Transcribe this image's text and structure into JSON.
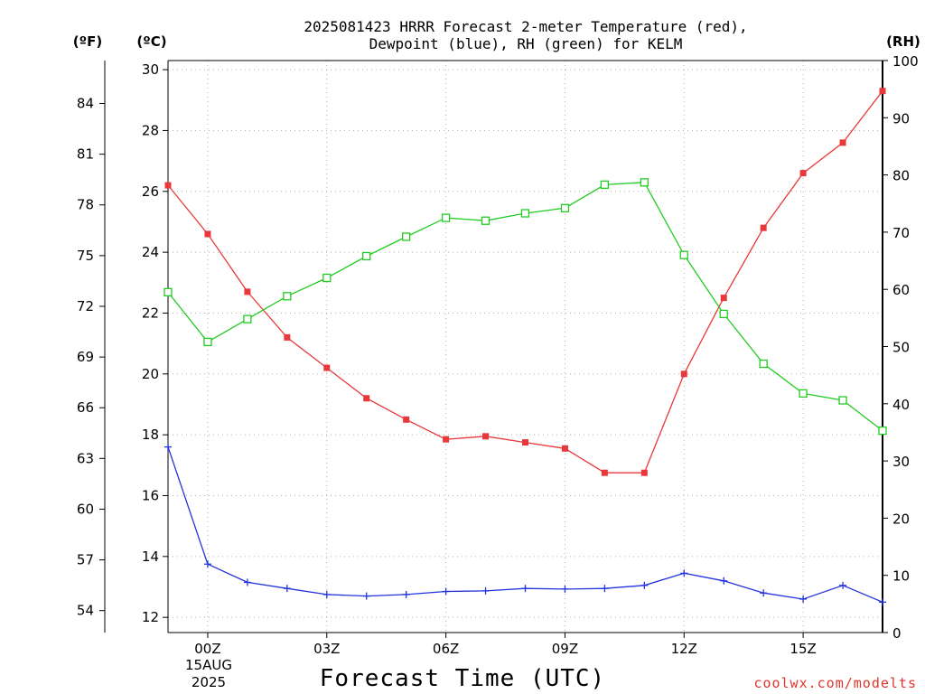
{
  "chart_data": {
    "type": "line",
    "title_lines": [
      "2025081423 HRRR Forecast 2-meter Temperature (red),",
      "Dewpoint (blue), RH (green) for KELM"
    ],
    "xlabel": "Forecast Time (UTC)",
    "x_hours": [
      -1,
      0,
      1,
      2,
      3,
      4,
      5,
      6,
      7,
      8,
      9,
      10,
      11,
      12,
      13,
      14,
      15,
      16,
      17
    ],
    "x_ticks": [
      {
        "h": 0,
        "label": "00Z"
      },
      {
        "h": 3,
        "label": "03Z"
      },
      {
        "h": 6,
        "label": "06Z"
      },
      {
        "h": 9,
        "label": "09Z"
      },
      {
        "h": 12,
        "label": "12Z"
      },
      {
        "h": 15,
        "label": "15Z"
      }
    ],
    "date_label": [
      "15AUG",
      "2025"
    ],
    "xlim": [
      -1,
      17
    ],
    "y_celsius": {
      "unit": "(ºC)",
      "lim": [
        11.5,
        30.3
      ],
      "ticks": [
        12,
        14,
        16,
        18,
        20,
        22,
        24,
        26,
        28,
        30
      ]
    },
    "y_fahrenheit": {
      "unit": "(ºF)",
      "ticks": [
        54,
        57,
        60,
        63,
        66,
        69,
        72,
        75,
        78,
        81,
        84
      ]
    },
    "y_rh": {
      "unit": "(RH)",
      "lim": [
        0,
        100
      ],
      "ticks": [
        0,
        10,
        20,
        30,
        40,
        50,
        60,
        70,
        80,
        90,
        100
      ]
    },
    "series": [
      {
        "name": "Temperature",
        "axis": "celsius",
        "color": "#e8383a",
        "marker": "filled-square",
        "values": [
          26.2,
          24.6,
          22.7,
          21.2,
          20.2,
          19.2,
          18.5,
          17.85,
          17.95,
          17.75,
          17.55,
          16.75,
          16.75,
          20.0,
          22.5,
          24.8,
          26.6,
          27.6,
          29.3
        ]
      },
      {
        "name": "Dewpoint",
        "axis": "celsius",
        "color": "#2233dd",
        "marker": "plus",
        "values": [
          17.6,
          13.75,
          13.15,
          12.95,
          12.75,
          12.7,
          12.75,
          12.85,
          12.87,
          12.95,
          12.93,
          12.95,
          13.05,
          13.45,
          13.2,
          12.8,
          12.6,
          13.05,
          12.5
        ]
      },
      {
        "name": "RH",
        "axis": "rh",
        "color": "#22cc22",
        "marker": "open-square",
        "values": [
          59.5,
          50.8,
          54.8,
          58.8,
          62.0,
          65.8,
          69.2,
          72.5,
          72.0,
          73.3,
          74.2,
          78.3,
          78.7,
          66.0,
          55.7,
          47.0,
          41.8,
          40.6,
          35.3
        ]
      }
    ],
    "grid": true,
    "credit": "coolwx.com/modelts"
  }
}
